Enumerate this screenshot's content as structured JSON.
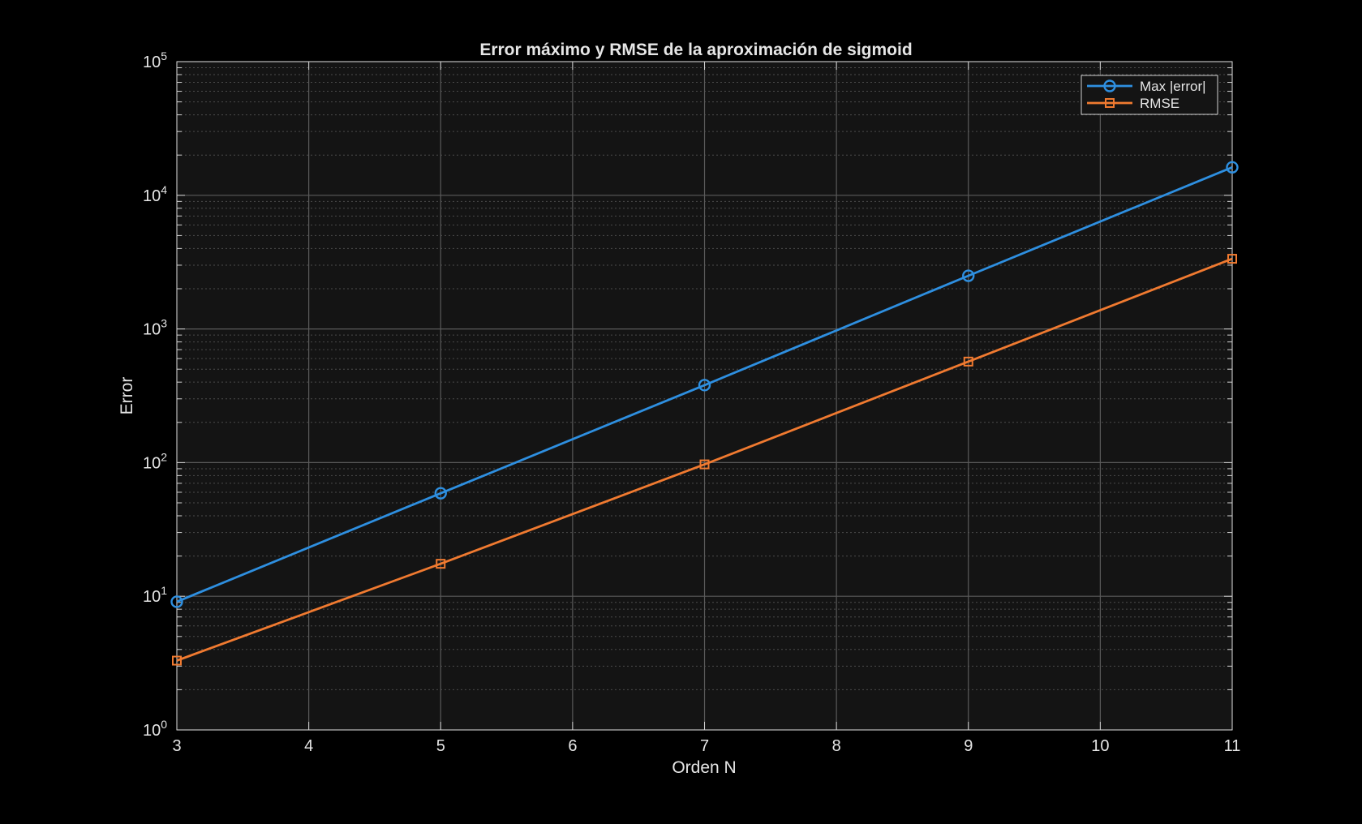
{
  "chart_data": {
    "type": "line",
    "title": "Error máximo y RMSE de la aproximación de sigmoid",
    "xlabel": "Orden N",
    "ylabel": "Error",
    "x": [
      3,
      5,
      7,
      9,
      11
    ],
    "xlim": [
      3,
      11
    ],
    "xticks": [
      "3",
      "4",
      "5",
      "6",
      "7",
      "8",
      "9",
      "10",
      "11"
    ],
    "ylim": [
      1,
      100000
    ],
    "yscale": "log",
    "yticks": [
      {
        "base": "10",
        "exp": "0"
      },
      {
        "base": "10",
        "exp": "1"
      },
      {
        "base": "10",
        "exp": "2"
      },
      {
        "base": "10",
        "exp": "3"
      },
      {
        "base": "10",
        "exp": "4"
      },
      {
        "base": "10",
        "exp": "5"
      }
    ],
    "grid": true,
    "minor_grid": true,
    "legend_position": "top-right",
    "series": [
      {
        "name": "Max |error|",
        "marker": "circle",
        "color": "#2e8fe0",
        "values": [
          9.1,
          59,
          380,
          2500,
          16200
        ]
      },
      {
        "name": "RMSE",
        "marker": "square",
        "color": "#f07a30",
        "values": [
          3.3,
          17.5,
          97,
          570,
          3350
        ]
      }
    ],
    "colors": {
      "figure_background": "#000000",
      "axes_background": "#141414",
      "text": "#e6e6e6",
      "grid": "#5a5a5a"
    }
  }
}
